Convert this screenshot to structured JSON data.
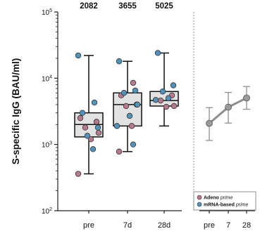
{
  "colors": {
    "adeno": "#b9798c",
    "mrna": "#4f93bd",
    "box_fill": "#e2e2e2",
    "trend": "#8f8f8f",
    "dotted_divider": "#9a9a9a"
  },
  "chart_data": [
    {
      "type": "box",
      "ylabel": "S-specific IgG (BAU/ml)",
      "y_scale": "log",
      "ylim": [
        100,
        100000
      ],
      "y_ticks": [
        {
          "value": 100,
          "base": "10",
          "exp": "2"
        },
        {
          "value": 1000,
          "base": "10",
          "exp": "3"
        },
        {
          "value": 10000,
          "base": "10",
          "exp": "4"
        },
        {
          "value": 100000,
          "base": "10",
          "exp": "5"
        }
      ],
      "categories": [
        "pre",
        "7d",
        "28d"
      ],
      "top_values": [
        "2082",
        "3655",
        "5025"
      ],
      "boxes": [
        {
          "min": 360,
          "q1": 1300,
          "median": 2000,
          "q3": 3000,
          "max": 22000
        },
        {
          "min": 780,
          "q1": 1900,
          "median": 4000,
          "q3": 6000,
          "max": 18000
        },
        {
          "min": 1900,
          "q1": 3800,
          "median": 4600,
          "q3": 6300,
          "max": 24000
        }
      ],
      "series": [
        {
          "name": "Adeno",
          "name_suffix": "prime",
          "points": [
            {
              "cat": 0,
              "y": 2500
            },
            {
              "cat": 0,
              "y": 2200
            },
            {
              "cat": 0,
              "y": 1800
            },
            {
              "cat": 0,
              "y": 1500
            },
            {
              "cat": 0,
              "y": 1200
            },
            {
              "cat": 0,
              "y": 360
            },
            {
              "cat": 1,
              "y": 8500
            },
            {
              "cat": 1,
              "y": 5500
            },
            {
              "cat": 1,
              "y": 4000
            },
            {
              "cat": 1,
              "y": 3800
            },
            {
              "cat": 1,
              "y": 1900
            },
            {
              "cat": 1,
              "y": 780
            },
            {
              "cat": 2,
              "y": 5500
            },
            {
              "cat": 2,
              "y": 4600
            },
            {
              "cat": 2,
              "y": 3800
            },
            {
              "cat": 2,
              "y": 3700
            }
          ]
        },
        {
          "name": "mRNA-based",
          "name_suffix": "prime",
          "points": [
            {
              "cat": 0,
              "y": 22000
            },
            {
              "cat": 0,
              "y": 4300
            },
            {
              "cat": 0,
              "y": 3000
            },
            {
              "cat": 0,
              "y": 1800
            },
            {
              "cat": 0,
              "y": 1350
            },
            {
              "cat": 0,
              "y": 850
            },
            {
              "cat": 1,
              "y": 18000
            },
            {
              "cat": 1,
              "y": 6500
            },
            {
              "cat": 1,
              "y": 6000
            },
            {
              "cat": 1,
              "y": 4000
            },
            {
              "cat": 1,
              "y": 2700
            },
            {
              "cat": 1,
              "y": 1900
            },
            {
              "cat": 1,
              "y": 1000
            },
            {
              "cat": 2,
              "y": 24000
            },
            {
              "cat": 2,
              "y": 7800
            },
            {
              "cat": 2,
              "y": 6300
            },
            {
              "cat": 2,
              "y": 5000
            },
            {
              "cat": 2,
              "y": 4700
            }
          ]
        }
      ],
      "legend_position": "bottom-right"
    },
    {
      "type": "line",
      "x": [
        "pre",
        "7",
        "28"
      ],
      "values": [
        2082,
        3655,
        5025
      ],
      "error": [
        {
          "low": 1150,
          "high": 3600
        },
        {
          "low": 2100,
          "high": 6100
        },
        {
          "low": 3400,
          "high": 7500
        }
      ]
    }
  ]
}
